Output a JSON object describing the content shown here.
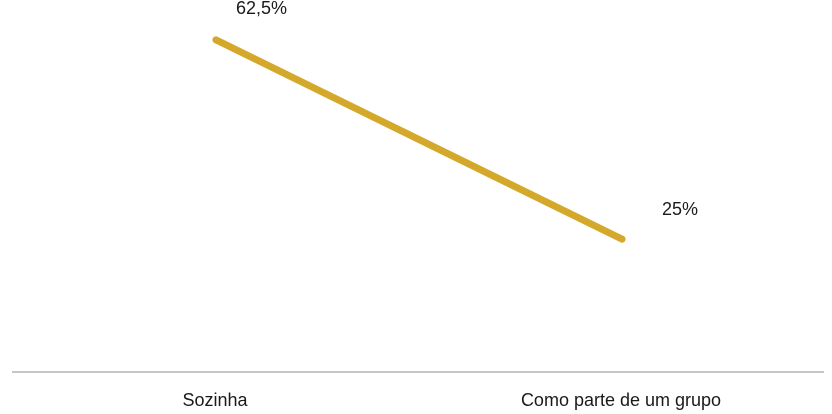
{
  "chart_data": {
    "type": "line",
    "categories": [
      "Sozinha",
      "Como parte de um grupo"
    ],
    "series": [
      {
        "values": [
          62.5,
          25
        ],
        "labels": [
          "62,5%",
          "25%"
        ],
        "color": "#d4a82a"
      }
    ],
    "title": "",
    "xlabel": "",
    "ylabel": "",
    "ylim": [
      0,
      70
    ],
    "grid": false,
    "legend": "none",
    "axis_color": "#8c8c8c"
  }
}
